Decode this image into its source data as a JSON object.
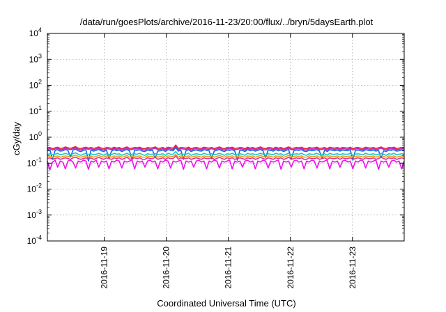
{
  "chart_data": {
    "type": "line",
    "title": "/data/run/goesPlots/archive/2016-11-23/20:00/flux/../bryn/5daysEarth.plot",
    "xlabel": "Coordinated Universal Time (UTC)",
    "ylabel": "cGy/day",
    "y_scale": "log",
    "ylim": [
      0.0001,
      10000
    ],
    "y_ticks": [
      {
        "value": 0.0001,
        "base": "10",
        "exp": "-4"
      },
      {
        "value": 0.001,
        "base": "10",
        "exp": "-3"
      },
      {
        "value": 0.01,
        "base": "10",
        "exp": "-2"
      },
      {
        "value": 0.1,
        "base": "10",
        "exp": "-1"
      },
      {
        "value": 1,
        "base": "10",
        "exp": "0"
      },
      {
        "value": 10,
        "base": "10",
        "exp": "1"
      },
      {
        "value": 100,
        "base": "10",
        "exp": "2"
      },
      {
        "value": 1000,
        "base": "10",
        "exp": "3"
      },
      {
        "value": 10000,
        "base": "10",
        "exp": "4"
      }
    ],
    "xlim": [
      "2016-11-18 02:00",
      "2016-11-23 20:00"
    ],
    "x_ticks": [
      "2016-11-19",
      "2016-11-20",
      "2016-11-21",
      "2016-11-22",
      "2016-11-23"
    ],
    "grid": true,
    "x_step_hours": 1,
    "series": [
      {
        "color": "#e8232b",
        "values": [
          0.38,
          0.4,
          0.36,
          0.39,
          0.41,
          0.37,
          0.38,
          0.42,
          0.39,
          0.37,
          0.4,
          0.43,
          0.38,
          0.36,
          0.39,
          0.41,
          0.38,
          0.4,
          0.37,
          0.39,
          0.42,
          0.38,
          0.36,
          0.4,
          0.39,
          0.37,
          0.41,
          0.38,
          0.4,
          0.36,
          0.39,
          0.42,
          0.37,
          0.38,
          0.4,
          0.39,
          0.41,
          0.37,
          0.36,
          0.4,
          0.38,
          0.39,
          0.42,
          0.37,
          0.38,
          0.4,
          0.36,
          0.41,
          0.39,
          0.38,
          0.5,
          0.37,
          0.4,
          0.39,
          0.38,
          0.41,
          0.36,
          0.39,
          0.4,
          0.38,
          0.37,
          0.41,
          0.39,
          0.38,
          0.4,
          0.37,
          0.39,
          0.42,
          0.38,
          0.36,
          0.4,
          0.39,
          0.41,
          0.37,
          0.38,
          0.4,
          0.39,
          0.36,
          0.41,
          0.38,
          0.4,
          0.37,
          0.39,
          0.42,
          0.38,
          0.36,
          0.4,
          0.39,
          0.37,
          0.41,
          0.38,
          0.4,
          0.36,
          0.39,
          0.42,
          0.37,
          0.38,
          0.4,
          0.39,
          0.41,
          0.37,
          0.36,
          0.4,
          0.38,
          0.39,
          0.41,
          0.37,
          0.38,
          0.4,
          0.36,
          0.41,
          0.39,
          0.38,
          0.4,
          0.37,
          0.4,
          0.39,
          0.38,
          0.41,
          0.36,
          0.39,
          0.4,
          0.38,
          0.37,
          0.41,
          0.39,
          0.38,
          0.4,
          0.37,
          0.39,
          0.42,
          0.38,
          0.36,
          0.4,
          0.39,
          0.41,
          0.37,
          0.38,
          0.4,
          0.39
        ]
      },
      {
        "color": "#c81ed0",
        "values": [
          0.34,
          0.36,
          0.32,
          0.35,
          0.37,
          0.33,
          0.34,
          0.38,
          0.35,
          0.33,
          0.36,
          0.39,
          0.34,
          0.32,
          0.35,
          0.37,
          0.34,
          0.36,
          0.33,
          0.35,
          0.38,
          0.34,
          0.32,
          0.36,
          0.35,
          0.33,
          0.37,
          0.34,
          0.36,
          0.32,
          0.35,
          0.38,
          0.33,
          0.34,
          0.36,
          0.35,
          0.37,
          0.33,
          0.32,
          0.36,
          0.34,
          0.35,
          0.38,
          0.33,
          0.34,
          0.36,
          0.32,
          0.37,
          0.35,
          0.34,
          0.44,
          0.33,
          0.36,
          0.35,
          0.34,
          0.37,
          0.32,
          0.35,
          0.36,
          0.34,
          0.33,
          0.37,
          0.35,
          0.34,
          0.36,
          0.33,
          0.35,
          0.38,
          0.34,
          0.32,
          0.36,
          0.35,
          0.37,
          0.33,
          0.34,
          0.36,
          0.35,
          0.32,
          0.37,
          0.34,
          0.36,
          0.33,
          0.35,
          0.38,
          0.34,
          0.32,
          0.36,
          0.35,
          0.33,
          0.37,
          0.34,
          0.36,
          0.32,
          0.35,
          0.38,
          0.33,
          0.34,
          0.36,
          0.35,
          0.37,
          0.33,
          0.32,
          0.36,
          0.34,
          0.35,
          0.37,
          0.33,
          0.34,
          0.36,
          0.32,
          0.37,
          0.35,
          0.34,
          0.36,
          0.33,
          0.36,
          0.35,
          0.34,
          0.37,
          0.32,
          0.35,
          0.36,
          0.34,
          0.33,
          0.37,
          0.35,
          0.34,
          0.36,
          0.33,
          0.35,
          0.38,
          0.34,
          0.32,
          0.36,
          0.35,
          0.37,
          0.33,
          0.34,
          0.36,
          0.35
        ]
      },
      {
        "color": "#1565e0",
        "values": [
          0.3,
          0.32,
          0.14,
          0.31,
          0.33,
          0.29,
          0.3,
          0.34,
          0.31,
          0.17,
          0.32,
          0.35,
          0.3,
          0.28,
          0.31,
          0.33,
          0.12,
          0.32,
          0.29,
          0.31,
          0.34,
          0.3,
          0.28,
          0.32,
          0.15,
          0.29,
          0.33,
          0.3,
          0.32,
          0.28,
          0.31,
          0.34,
          0.29,
          0.13,
          0.32,
          0.31,
          0.33,
          0.29,
          0.28,
          0.32,
          0.3,
          0.31,
          0.16,
          0.29,
          0.3,
          0.32,
          0.28,
          0.33,
          0.31,
          0.3,
          0.4,
          0.29,
          0.32,
          0.14,
          0.3,
          0.33,
          0.28,
          0.31,
          0.32,
          0.3,
          0.29,
          0.33,
          0.31,
          0.3,
          0.15,
          0.29,
          0.31,
          0.34,
          0.3,
          0.28,
          0.32,
          0.31,
          0.33,
          0.29,
          0.13,
          0.32,
          0.31,
          0.28,
          0.33,
          0.3,
          0.32,
          0.29,
          0.31,
          0.34,
          0.3,
          0.16,
          0.32,
          0.31,
          0.29,
          0.33,
          0.3,
          0.32,
          0.28,
          0.31,
          0.34,
          0.14,
          0.3,
          0.32,
          0.31,
          0.33,
          0.29,
          0.28,
          0.32,
          0.3,
          0.31,
          0.33,
          0.29,
          0.15,
          0.32,
          0.28,
          0.33,
          0.31,
          0.3,
          0.32,
          0.29,
          0.32,
          0.31,
          0.3,
          0.33,
          0.13,
          0.31,
          0.32,
          0.3,
          0.29,
          0.33,
          0.31,
          0.3,
          0.32,
          0.29,
          0.31,
          0.16,
          0.3,
          0.28,
          0.32,
          0.31,
          0.33,
          0.29,
          0.3,
          0.32,
          0.31
        ]
      },
      {
        "color": "#18c8c0",
        "values": [
          0.22,
          0.23,
          0.21,
          0.22,
          0.24,
          0.21,
          0.22,
          0.24,
          0.22,
          0.21,
          0.23,
          0.25,
          0.22,
          0.2,
          0.22,
          0.24,
          0.21,
          0.23,
          0.21,
          0.22,
          0.24,
          0.22,
          0.2,
          0.23,
          0.22,
          0.21,
          0.24,
          0.22,
          0.23,
          0.2,
          0.22,
          0.24,
          0.21,
          0.22,
          0.23,
          0.22,
          0.24,
          0.21,
          0.2,
          0.23,
          0.22,
          0.22,
          0.24,
          0.21,
          0.22,
          0.23,
          0.2,
          0.24,
          0.22,
          0.22,
          0.28,
          0.21,
          0.23,
          0.22,
          0.22,
          0.24,
          0.2,
          0.22,
          0.23,
          0.22,
          0.21,
          0.24,
          0.22,
          0.22,
          0.23,
          0.21,
          0.22,
          0.24,
          0.22,
          0.2,
          0.23,
          0.22,
          0.24,
          0.21,
          0.22,
          0.23,
          0.22,
          0.2,
          0.24,
          0.22,
          0.23,
          0.21,
          0.22,
          0.24,
          0.22,
          0.2,
          0.23,
          0.22,
          0.21,
          0.24,
          0.22,
          0.23,
          0.2,
          0.22,
          0.24,
          0.21,
          0.22,
          0.23,
          0.22,
          0.24,
          0.21,
          0.2,
          0.23,
          0.22,
          0.22,
          0.24,
          0.21,
          0.22,
          0.23,
          0.2,
          0.24,
          0.22,
          0.22,
          0.23,
          0.21,
          0.23,
          0.22,
          0.22,
          0.24,
          0.2,
          0.22,
          0.23,
          0.22,
          0.21,
          0.24,
          0.22,
          0.22,
          0.23,
          0.21,
          0.22,
          0.24,
          0.22,
          0.2,
          0.23,
          0.22,
          0.24,
          0.21,
          0.22,
          0.23,
          0.22
        ]
      },
      {
        "color": "#e8a020",
        "values": [
          0.18,
          0.19,
          0.17,
          0.18,
          0.19,
          0.17,
          0.18,
          0.19,
          0.18,
          0.17,
          0.19,
          0.2,
          0.18,
          0.17,
          0.18,
          0.19,
          0.17,
          0.19,
          0.17,
          0.18,
          0.2,
          0.18,
          0.17,
          0.19,
          0.18,
          0.17,
          0.19,
          0.18,
          0.19,
          0.17,
          0.18,
          0.2,
          0.17,
          0.18,
          0.19,
          0.18,
          0.19,
          0.17,
          0.17,
          0.19,
          0.18,
          0.18,
          0.2,
          0.17,
          0.18,
          0.19,
          0.17,
          0.19,
          0.18,
          0.18,
          0.22,
          0.17,
          0.19,
          0.18,
          0.18,
          0.19,
          0.17,
          0.18,
          0.19,
          0.18,
          0.17,
          0.19,
          0.18,
          0.18,
          0.19,
          0.17,
          0.18,
          0.2,
          0.18,
          0.17,
          0.19,
          0.18,
          0.19,
          0.17,
          0.18,
          0.19,
          0.18,
          0.17,
          0.19,
          0.18,
          0.19,
          0.17,
          0.18,
          0.2,
          0.18,
          0.17,
          0.19,
          0.18,
          0.17,
          0.19,
          0.18,
          0.19,
          0.17,
          0.18,
          0.2,
          0.17,
          0.18,
          0.19,
          0.18,
          0.19,
          0.17,
          0.17,
          0.19,
          0.18,
          0.18,
          0.19,
          0.17,
          0.18,
          0.19,
          0.17,
          0.19,
          0.18,
          0.18,
          0.19,
          0.17,
          0.19,
          0.18,
          0.18,
          0.19,
          0.17,
          0.18,
          0.19,
          0.18,
          0.17,
          0.19,
          0.18,
          0.18,
          0.19,
          0.17,
          0.18,
          0.2,
          0.18,
          0.17,
          0.19,
          0.18,
          0.19,
          0.17,
          0.18,
          0.19,
          0.18
        ]
      },
      {
        "color": "#e0348a",
        "values": [
          0.15,
          0.16,
          0.14,
          0.15,
          0.16,
          0.14,
          0.15,
          0.16,
          0.15,
          0.14,
          0.16,
          0.17,
          0.15,
          0.14,
          0.15,
          0.16,
          0.14,
          0.16,
          0.14,
          0.15,
          0.17,
          0.15,
          0.14,
          0.16,
          0.15,
          0.14,
          0.16,
          0.15,
          0.16,
          0.14,
          0.15,
          0.17,
          0.14,
          0.15,
          0.16,
          0.15,
          0.16,
          0.14,
          0.14,
          0.16,
          0.15,
          0.15,
          0.17,
          0.14,
          0.15,
          0.16,
          0.14,
          0.16,
          0.15,
          0.15,
          0.19,
          0.14,
          0.16,
          0.15,
          0.15,
          0.16,
          0.14,
          0.15,
          0.16,
          0.15,
          0.14,
          0.16,
          0.15,
          0.15,
          0.16,
          0.14,
          0.15,
          0.17,
          0.15,
          0.14,
          0.16,
          0.15,
          0.16,
          0.14,
          0.15,
          0.16,
          0.15,
          0.14,
          0.16,
          0.15,
          0.16,
          0.14,
          0.15,
          0.17,
          0.15,
          0.14,
          0.16,
          0.15,
          0.14,
          0.16,
          0.15,
          0.16,
          0.14,
          0.15,
          0.17,
          0.14,
          0.15,
          0.16,
          0.15,
          0.16,
          0.14,
          0.14,
          0.16,
          0.15,
          0.15,
          0.16,
          0.14,
          0.15,
          0.16,
          0.14,
          0.16,
          0.15,
          0.15,
          0.16,
          0.14,
          0.16,
          0.15,
          0.15,
          0.16,
          0.14,
          0.15,
          0.16,
          0.15,
          0.14,
          0.16,
          0.15,
          0.15,
          0.16,
          0.14,
          0.15,
          0.17,
          0.15,
          0.14,
          0.16,
          0.15,
          0.16,
          0.14,
          0.15,
          0.16,
          0.15
        ]
      },
      {
        "color": "#f012f0",
        "values": [
          0.12,
          0.055,
          0.11,
          0.13,
          0.07,
          0.12,
          0.11,
          0.06,
          0.12,
          0.13,
          0.11,
          0.065,
          0.12,
          0.11,
          0.13,
          0.12,
          0.058,
          0.12,
          0.11,
          0.13,
          0.07,
          0.12,
          0.11,
          0.12,
          0.06,
          0.12,
          0.11,
          0.13,
          0.12,
          0.065,
          0.12,
          0.11,
          0.12,
          0.13,
          0.06,
          0.12,
          0.11,
          0.12,
          0.07,
          0.12,
          0.13,
          0.11,
          0.12,
          0.06,
          0.12,
          0.11,
          0.13,
          0.12,
          0.065,
          0.12,
          0.11,
          0.12,
          0.13,
          0.058,
          0.12,
          0.11,
          0.12,
          0.07,
          0.12,
          0.13,
          0.11,
          0.12,
          0.06,
          0.12,
          0.11,
          0.13,
          0.12,
          0.065,
          0.12,
          0.11,
          0.12,
          0.13,
          0.06,
          0.12,
          0.11,
          0.12,
          0.07,
          0.12,
          0.13,
          0.11,
          0.12,
          0.06,
          0.12,
          0.11,
          0.13,
          0.12,
          0.065,
          0.12,
          0.11,
          0.12,
          0.13,
          0.058,
          0.12,
          0.11,
          0.12,
          0.07,
          0.12,
          0.13,
          0.11,
          0.12,
          0.06,
          0.12,
          0.11,
          0.13,
          0.12,
          0.065,
          0.12,
          0.11,
          0.12,
          0.13,
          0.06,
          0.12,
          0.11,
          0.12,
          0.07,
          0.12,
          0.13,
          0.11,
          0.12,
          0.06,
          0.12,
          0.11,
          0.13,
          0.12,
          0.065,
          0.12,
          0.11,
          0.12,
          0.13,
          0.058,
          0.12,
          0.11,
          0.12,
          0.07,
          0.12,
          0.13,
          0.11,
          0.12,
          0.06,
          0.12
        ]
      }
    ]
  }
}
